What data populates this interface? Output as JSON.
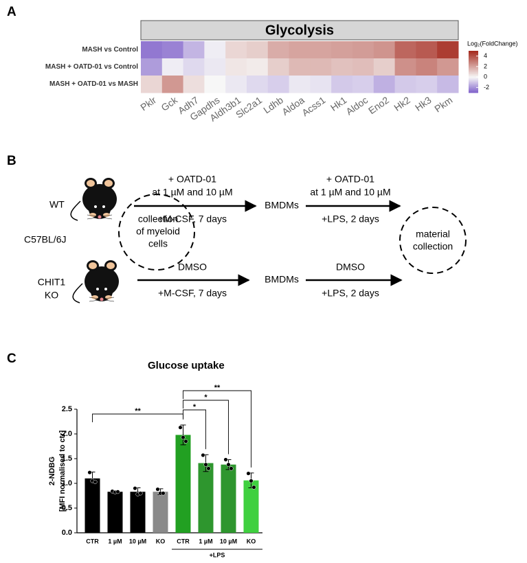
{
  "panel_labels": [
    "A",
    "B",
    "C"
  ],
  "chart_data": [
    {
      "type": "heatmap",
      "title": "Glycolysis",
      "rows": [
        "MASH vs Control",
        "MASH + OATD-01 vs Control",
        "MASH + OATD-01 vs MASH"
      ],
      "columns": [
        "Pklr",
        "Gck",
        "Adh7",
        "Gapdhs",
        "Aldh3b1",
        "Slc2a1",
        "Ldhb",
        "Aldoa",
        "Acss1",
        "Hk1",
        "Aldoc",
        "Eno2",
        "Hk2",
        "Hk3",
        "Pkm"
      ],
      "values": [
        [
          -2.5,
          -2.3,
          -1.3,
          -0.2,
          0.8,
          1.0,
          1.8,
          2.0,
          2.0,
          2.1,
          2.2,
          2.4,
          3.5,
          3.8,
          4.5
        ],
        [
          -1.8,
          -0.2,
          -0.6,
          -0.3,
          0.4,
          0.3,
          1.0,
          1.5,
          1.5,
          1.3,
          1.4,
          1.0,
          2.5,
          2.8,
          2.3
        ],
        [
          0.8,
          2.3,
          0.6,
          0.0,
          -0.3,
          -0.6,
          -0.8,
          -0.3,
          -0.4,
          -0.9,
          -0.8,
          -1.4,
          -0.9,
          -0.8,
          -1.2
        ]
      ],
      "legend_title": "Log₂(FoldChange)",
      "zlim": [
        -3,
        5
      ],
      "zticks": [
        -2,
        0,
        2,
        4
      ],
      "colors": [
        "#7e5fc9",
        "#f7f7f7",
        "#a4281c"
      ]
    },
    {
      "type": "bar",
      "title": "Glucose uptake",
      "ylabel": [
        "2-NDBG",
        "[MFI normalised to ctr]"
      ],
      "categories": [
        "CTR",
        "1 µM",
        "10 µM",
        "KO",
        "CTR",
        "1 µM",
        "10 µM",
        "KO"
      ],
      "values": [
        1.1,
        0.83,
        0.83,
        0.83,
        1.98,
        1.41,
        1.38,
        1.06
      ],
      "errors": [
        0.13,
        0.02,
        0.08,
        0.06,
        0.2,
        0.17,
        0.1,
        0.15
      ],
      "points": [
        [
          1.22,
          1.05,
          1.03
        ],
        [
          0.84,
          0.82,
          0.83
        ],
        [
          0.9,
          0.78,
          0.8
        ],
        [
          0.88,
          0.8,
          0.8
        ],
        [
          2.13,
          1.93,
          1.85
        ],
        [
          1.57,
          1.38,
          1.3
        ],
        [
          1.48,
          1.38,
          1.3
        ],
        [
          1.2,
          1.05,
          0.92
        ]
      ],
      "colors": [
        "#000000",
        "#000000",
        "#000000",
        "#8a8a8a",
        "#22a022",
        "#2e962e",
        "#2e962e",
        "#3fd03f"
      ],
      "group_labels": [
        {
          "label": "+LPS",
          "from": 4,
          "to": 7
        }
      ],
      "annotations": [
        {
          "from": 4,
          "to": 7,
          "label": "**"
        },
        {
          "from": 4,
          "to": 6,
          "label": "*"
        },
        {
          "from": 4,
          "to": 5,
          "label": "*"
        },
        {
          "from": 0,
          "to": 4,
          "label": "**"
        }
      ],
      "ylim": [
        0,
        2.5
      ],
      "yticks": [
        {
          "value": 0,
          "label": "0.0"
        },
        0.5,
        {
          "value": 1,
          "label": "1.0"
        },
        1.5,
        {
          "value": 2,
          "label": "2.0"
        },
        2.5
      ]
    }
  ],
  "diagram": {
    "wt": "WT",
    "strain": "C57BL/6J",
    "ko": [
      "CHIT1",
      "KO"
    ],
    "collection": [
      "collection",
      "of myeloid",
      "cells"
    ],
    "top_step1": [
      "+ OATD-01",
      "at 1 µM and 10 µM"
    ],
    "top_step1_below": "+M-CSF, 7 days",
    "top_cells": "BMDMs",
    "top_step2": [
      "+ OATD-01",
      "at 1 µM and 10 µM"
    ],
    "top_step2_below": "+LPS, 2 days",
    "bottom_step1": "DMSO",
    "bottom_step1_below": "+M-CSF, 7 days",
    "bottom_cells": "BMDMs",
    "bottom_step2": "DMSO",
    "bottom_step2_below": "+LPS, 2 days",
    "material": [
      "material",
      "collection"
    ]
  }
}
